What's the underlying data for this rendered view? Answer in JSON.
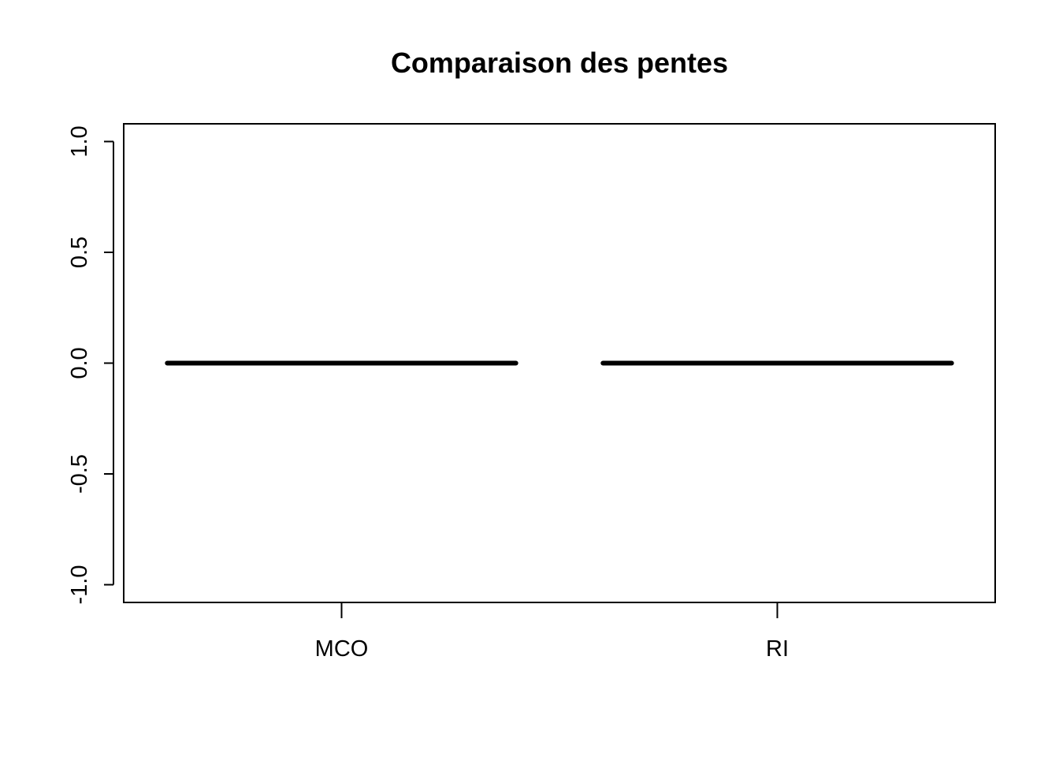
{
  "chart_data": {
    "type": "boxplot",
    "title": "Comparaison des pentes",
    "xlabel": "",
    "ylabel": "",
    "categories": [
      "MCO",
      "RI"
    ],
    "values": [
      0.0,
      0.0
    ],
    "ylim": [
      -1.08,
      1.08
    ],
    "yticks": [
      -1.0,
      -0.5,
      0.0,
      0.5,
      1.0
    ],
    "ytick_labels": [
      "-1.0",
      "-0.5",
      "0.0",
      "0.5",
      "1.0"
    ],
    "grid": false,
    "legend": "none",
    "colors": {
      "median": "#000000",
      "axis": "#000000",
      "background": "#ffffff"
    }
  }
}
